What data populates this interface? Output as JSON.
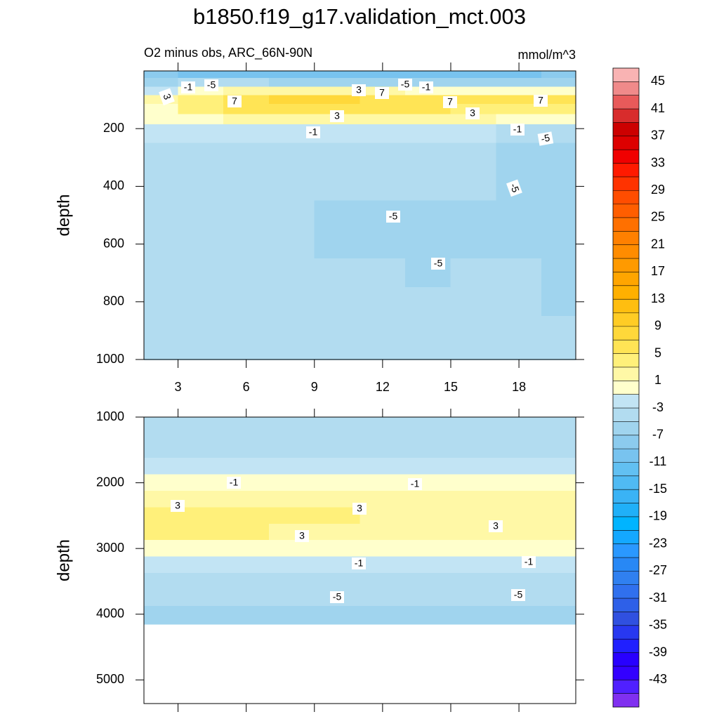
{
  "chart_data": [
    {
      "type": "contour",
      "title": "b1850.f19_g17.validation_mct.003",
      "subtitle_left": "O2 minus obs, ARC_66N-90N",
      "subtitle_right": "mmol/m^3",
      "ylabel": "depth",
      "y_reversed": true,
      "x": [
        2,
        4,
        6,
        8,
        10,
        12,
        14,
        16,
        18,
        20
      ],
      "y": [
        10,
        40,
        70,
        100,
        130,
        170,
        200,
        300,
        400,
        500,
        600,
        700,
        800,
        900,
        1000
      ],
      "z": [
        [
          -8,
          -9,
          -9,
          -9,
          -9,
          -9,
          -9,
          -9,
          -9,
          -8
        ],
        [
          -5,
          -4,
          -4,
          -5,
          -5,
          -5,
          -5,
          -5,
          -5,
          -5
        ],
        [
          -1,
          1,
          2,
          3,
          2,
          2,
          1,
          1,
          1,
          0
        ],
        [
          2,
          5,
          7,
          9,
          8,
          7,
          7,
          6,
          7,
          6
        ],
        [
          1,
          4,
          6,
          7,
          7,
          6,
          6,
          5,
          5,
          4
        ],
        [
          0,
          1,
          2,
          2,
          2,
          2,
          2,
          2,
          1,
          0
        ],
        [
          -2,
          -2,
          -2,
          -2,
          -2,
          -2,
          -2,
          -2,
          -3,
          -4
        ],
        [
          -3.5,
          -3.5,
          -4,
          -4,
          -4,
          -4,
          -4,
          -4.5,
          -5.5,
          -6
        ],
        [
          -3.5,
          -3.5,
          -3.5,
          -3.5,
          -4.5,
          -4.5,
          -4.5,
          -4.5,
          -5,
          -6
        ],
        [
          -4,
          -4,
          -4,
          -4.5,
          -5,
          -5.5,
          -5.5,
          -5.5,
          -5.5,
          -6
        ],
        [
          -4.5,
          -4.5,
          -4.5,
          -4.5,
          -5,
          -5.5,
          -5.5,
          -5.5,
          -5.5,
          -5.5
        ],
        [
          -4.5,
          -4.5,
          -4.5,
          -4.5,
          -4.5,
          -4.5,
          -5,
          -4.5,
          -4.5,
          -5
        ],
        [
          -4.5,
          -4.5,
          -4.5,
          -4.5,
          -4.5,
          -4.5,
          -4.5,
          -4.5,
          -4.5,
          -5
        ],
        [
          -4,
          -4,
          -4.5,
          -4.5,
          -4.5,
          -4.5,
          -4.5,
          -4.5,
          -4.5,
          -4.5
        ],
        [
          -4,
          -4,
          -4,
          -4.5,
          -4.5,
          -4.5,
          -4.5,
          -4.5,
          -4.5,
          -4.5
        ]
      ],
      "xlim": [
        1.5,
        20.5
      ],
      "ylim": [
        0,
        1000
      ],
      "xticks": [
        3,
        6,
        9,
        12,
        15,
        18
      ],
      "yticks": [
        200,
        400,
        600,
        800,
        1000
      ],
      "show_xtick_labels": true,
      "contour_labels": [
        -1,
        -5,
        3,
        7,
        3,
        7,
        -5,
        -1,
        7,
        7,
        3,
        3,
        -1,
        -1,
        -5,
        -5,
        -5,
        -5
      ]
    },
    {
      "type": "contour",
      "ylabel": "depth",
      "y_reversed": true,
      "x": [
        2,
        4,
        6,
        8,
        10,
        12,
        14,
        16,
        18,
        20
      ],
      "y": [
        1000,
        1250,
        1500,
        1750,
        2000,
        2250,
        2500,
        2750,
        3000,
        3250,
        3500,
        3750,
        4000,
        4100
      ],
      "z": [
        [
          -4,
          -4,
          -3.5,
          -3.5,
          -3.5,
          -3.5,
          -3.5,
          -3.5,
          -3.5,
          -3.5
        ],
        [
          -4,
          -4,
          -4,
          -4,
          -4,
          -4,
          -4,
          -4,
          -4,
          -4
        ],
        [
          -4.5,
          -4.5,
          -4.5,
          -4.5,
          -4.5,
          -4.5,
          -4.5,
          -4.5,
          -4.5,
          -4.5
        ],
        [
          -2.5,
          -2.5,
          -2.5,
          -2.5,
          -2.5,
          -2.5,
          -2.5,
          -2.5,
          -2.5,
          -2.5
        ],
        [
          0,
          0,
          0,
          0,
          0,
          0,
          0,
          0,
          0,
          0
        ],
        [
          2,
          2.5,
          2.5,
          2.5,
          2,
          2,
          2,
          2,
          2,
          2
        ],
        [
          3.5,
          3.5,
          3.5,
          3.5,
          3.5,
          3,
          3,
          2.5,
          2,
          2
        ],
        [
          3.5,
          3.5,
          3.5,
          3,
          2.5,
          2.5,
          2,
          2,
          2,
          2
        ],
        [
          1,
          1,
          1,
          1,
          1,
          1,
          1,
          1,
          1,
          1
        ],
        [
          -2,
          -2,
          -2,
          -2,
          -2,
          -2,
          -2,
          -2,
          -2,
          -2
        ],
        [
          -3.5,
          -3.5,
          -3.5,
          -3.5,
          -3.5,
          -3.5,
          -3.5,
          -3.5,
          -3.5,
          -3.5
        ],
        [
          -4.5,
          -4.5,
          -4.5,
          -4.5,
          -4.5,
          -4.5,
          -4.5,
          -4.5,
          -4.5,
          -4.5
        ],
        [
          -5.5,
          -5.5,
          -5.5,
          -5.5,
          -5.5,
          -5.5,
          -5.5,
          -5.5,
          -5.5,
          -5.5
        ],
        [
          -6,
          -6,
          -6,
          -6,
          -6,
          -6,
          -6,
          -6,
          -6,
          -6
        ]
      ],
      "xlim": [
        1.5,
        20.5
      ],
      "ylim": [
        1000,
        5360
      ],
      "xticks": [
        3,
        6,
        9,
        12,
        15,
        18
      ],
      "yticks": [
        1000,
        2000,
        3000,
        4000,
        5000
      ],
      "show_xtick_labels": false,
      "contour_labels": [
        -1,
        -1,
        3,
        3,
        3,
        3,
        -1,
        -1,
        -5,
        -5
      ]
    }
  ],
  "colorbar": {
    "levels": [
      45,
      43,
      41,
      39,
      37,
      35,
      33,
      31,
      29,
      27,
      25,
      23,
      21,
      19,
      17,
      15,
      13,
      11,
      9,
      7,
      5,
      3,
      1,
      -1,
      -3,
      -5,
      -7,
      -9,
      -11,
      -13,
      -15,
      -17,
      -19,
      -21,
      -23,
      -25,
      -27,
      -29,
      -31,
      -33,
      -35,
      -37,
      -39,
      -41,
      -43,
      -45
    ],
    "colors": [
      "#f9b3b3",
      "#f08a8a",
      "#e85a5a",
      "#d82c2c",
      "#cc0000",
      "#dd0000",
      "#f00000",
      "#ff1a00",
      "#ff3300",
      "#ff4d00",
      "#ff5e00",
      "#ff7000",
      "#ff8000",
      "#ff8c00",
      "#ff9a00",
      "#ffa500",
      "#ffb000",
      "#ffbe10",
      "#ffcc25",
      "#ffd83a",
      "#ffe455",
      "#fff07a",
      "#fff8a6",
      "#ffffcc",
      "#c2e4f4",
      "#b2dcf0",
      "#a0d4ee",
      "#8ccbee",
      "#78c3ef",
      "#62c0f2",
      "#50baf3",
      "#3ab3f5",
      "#20b0f8",
      "#00b4ff",
      "#14a8ff",
      "#2a98ff",
      "#2888f5",
      "#3080f0",
      "#3070ee",
      "#2e60e8",
      "#3050e0",
      "#2838f0",
      "#2020ff",
      "#2800ff",
      "#3300ff",
      "#5020ff",
      "#8030f0"
    ]
  }
}
